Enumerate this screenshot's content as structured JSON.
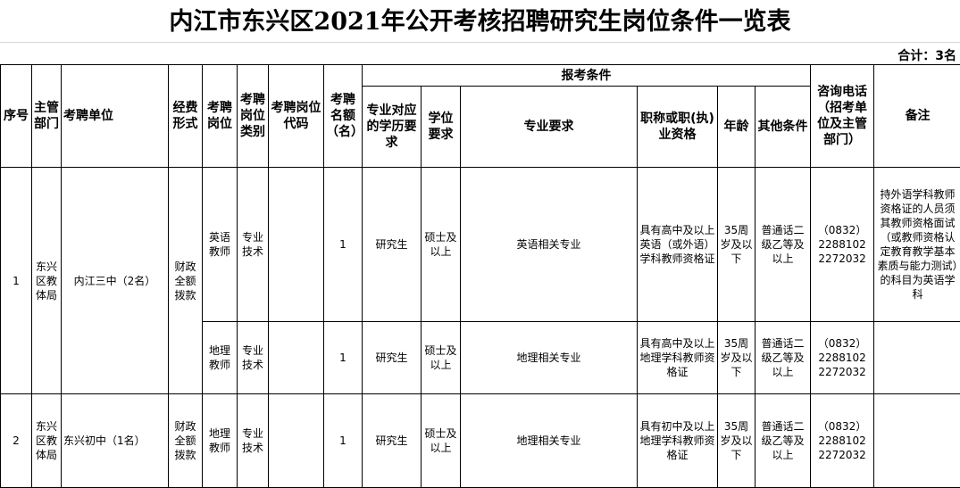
{
  "title": "内江市东兴区2021年公开考核招聘研究生岗位条件一览表",
  "total": "合计：3名",
  "headers": {
    "seq": "序号",
    "dept": "主管部门",
    "unit": "考聘单位",
    "fund": "经费形式",
    "post": "考聘岗位",
    "post_type": "考聘岗位类别",
    "post_code": "考聘岗位代码",
    "quota": "考聘名额（名）",
    "conditions": "报考条件",
    "edu": "专业对应的学历要求",
    "degree": "学位要求",
    "major": "专业要求",
    "qual": "职称或职(执)业资格",
    "age": "年龄",
    "other": "其他条件",
    "phone": "咨询电话（招考单位及主管部门）",
    "remark": "备注"
  },
  "rows": [
    {
      "seq": "1",
      "dept": "东兴区教体局",
      "unit": "内江三中（2名）",
      "fund": "财政全额拨款",
      "post": "英语教师",
      "post_type": "专业技术",
      "post_code": "",
      "quota": "1",
      "edu": "研究生",
      "degree": "硕士及以上",
      "major": "英语相关专业",
      "qual": "具有高中及以上英语（或外语）学科教师资格证",
      "age": "35周岁及以下",
      "other": "普通话二级乙等及以上",
      "phone": "（0832）2288102 2272032",
      "remark": "持外语学科教师资格证的人员须其教师资格面试（或教师资格认定教育教学基本素质与能力测试）的科目为英语学科"
    },
    {
      "post": "地理教师",
      "post_type": "专业技术",
      "post_code": "",
      "quota": "1",
      "edu": "研究生",
      "degree": "硕士及以上",
      "major": "地理相关专业",
      "qual": "具有高中及以上地理学科教师资格证",
      "age": "35周岁及以下",
      "other": "普通话二级乙等及以上",
      "phone": "（0832）2288102 2272032",
      "remark": ""
    },
    {
      "seq": "2",
      "dept": "东兴区教体局",
      "unit": "东兴初中（1名）",
      "fund": "财政全额拨款",
      "post": "地理教师",
      "post_type": "专业技术",
      "post_code": "",
      "quota": "1",
      "edu": "研究生",
      "degree": "硕士及以上",
      "major": "地理相关专业",
      "qual": "具有初中及以上地理学科教师资格证",
      "age": "35周岁及以下",
      "other": "普通话二级乙等及以上",
      "phone": "（0832）2288102 2272032",
      "remark": ""
    }
  ]
}
